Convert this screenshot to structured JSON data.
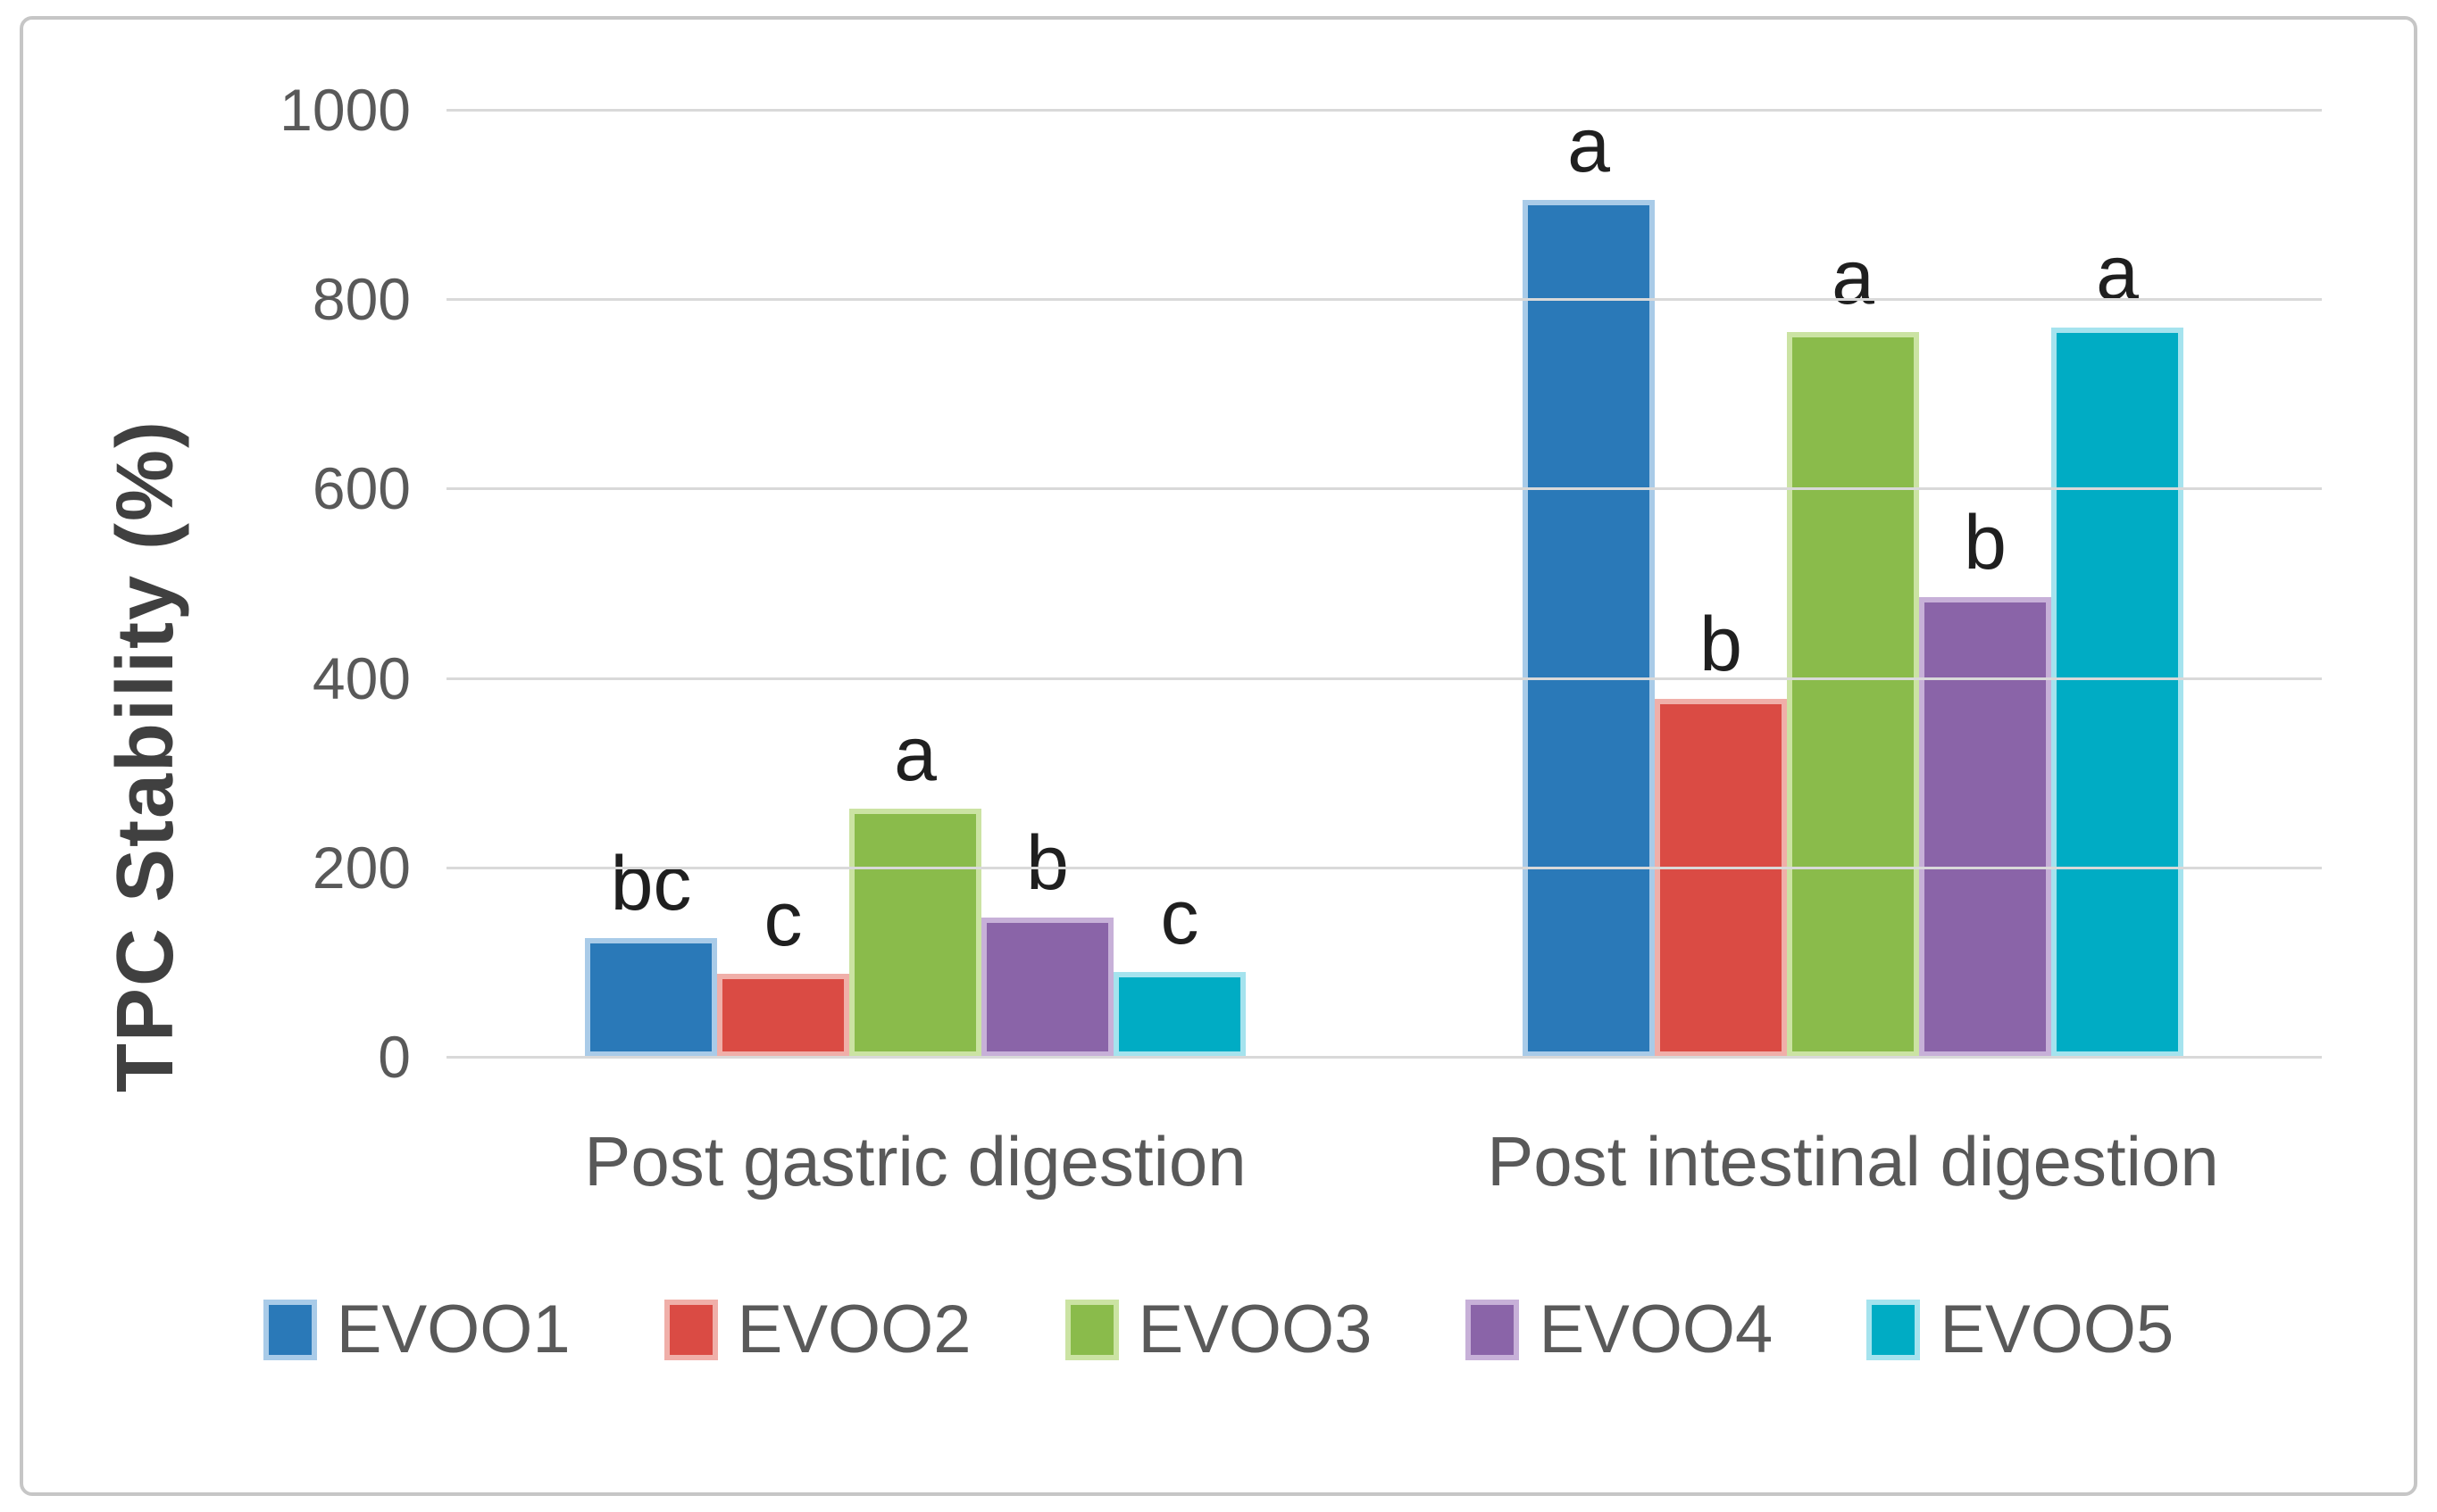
{
  "chart_data": {
    "type": "bar",
    "title": "",
    "xlabel": "",
    "ylabel": "TPC Stability (%)",
    "ylim": [
      0,
      1000
    ],
    "yticks": [
      1000,
      800,
      600,
      400,
      200,
      0
    ],
    "grid": true,
    "grid_color": "#d9d9d9",
    "axis_text_color": "#595959",
    "annotation_text_color": "#1f1f1f",
    "legend_position": "bottom",
    "categories": [
      "Post gastric digestion",
      "Post intestinal digestion"
    ],
    "series": [
      {
        "name": "EVOO1",
        "color": "#2a79b8",
        "edge_color": "#a9cbe8",
        "values": [
          125,
          905
        ],
        "letters": [
          "bc",
          "a"
        ]
      },
      {
        "name": "EVOO2",
        "color": "#da4b44",
        "edge_color": "#f0afa9",
        "values": [
          88,
          378
        ],
        "letters": [
          "c",
          "b"
        ]
      },
      {
        "name": "EVOO3",
        "color": "#8abb4b",
        "edge_color": "#cbe3a3",
        "values": [
          262,
          765
        ],
        "letters": [
          "a",
          "a"
        ]
      },
      {
        "name": "EVOO4",
        "color": "#8a64a8",
        "edge_color": "#c7b0d8",
        "values": [
          147,
          485
        ],
        "letters": [
          "b",
          "b"
        ]
      },
      {
        "name": "EVOO5",
        "color": "#00acc4",
        "edge_color": "#a5e3ee",
        "values": [
          90,
          770
        ],
        "letters": [
          "c",
          "a"
        ]
      }
    ]
  }
}
